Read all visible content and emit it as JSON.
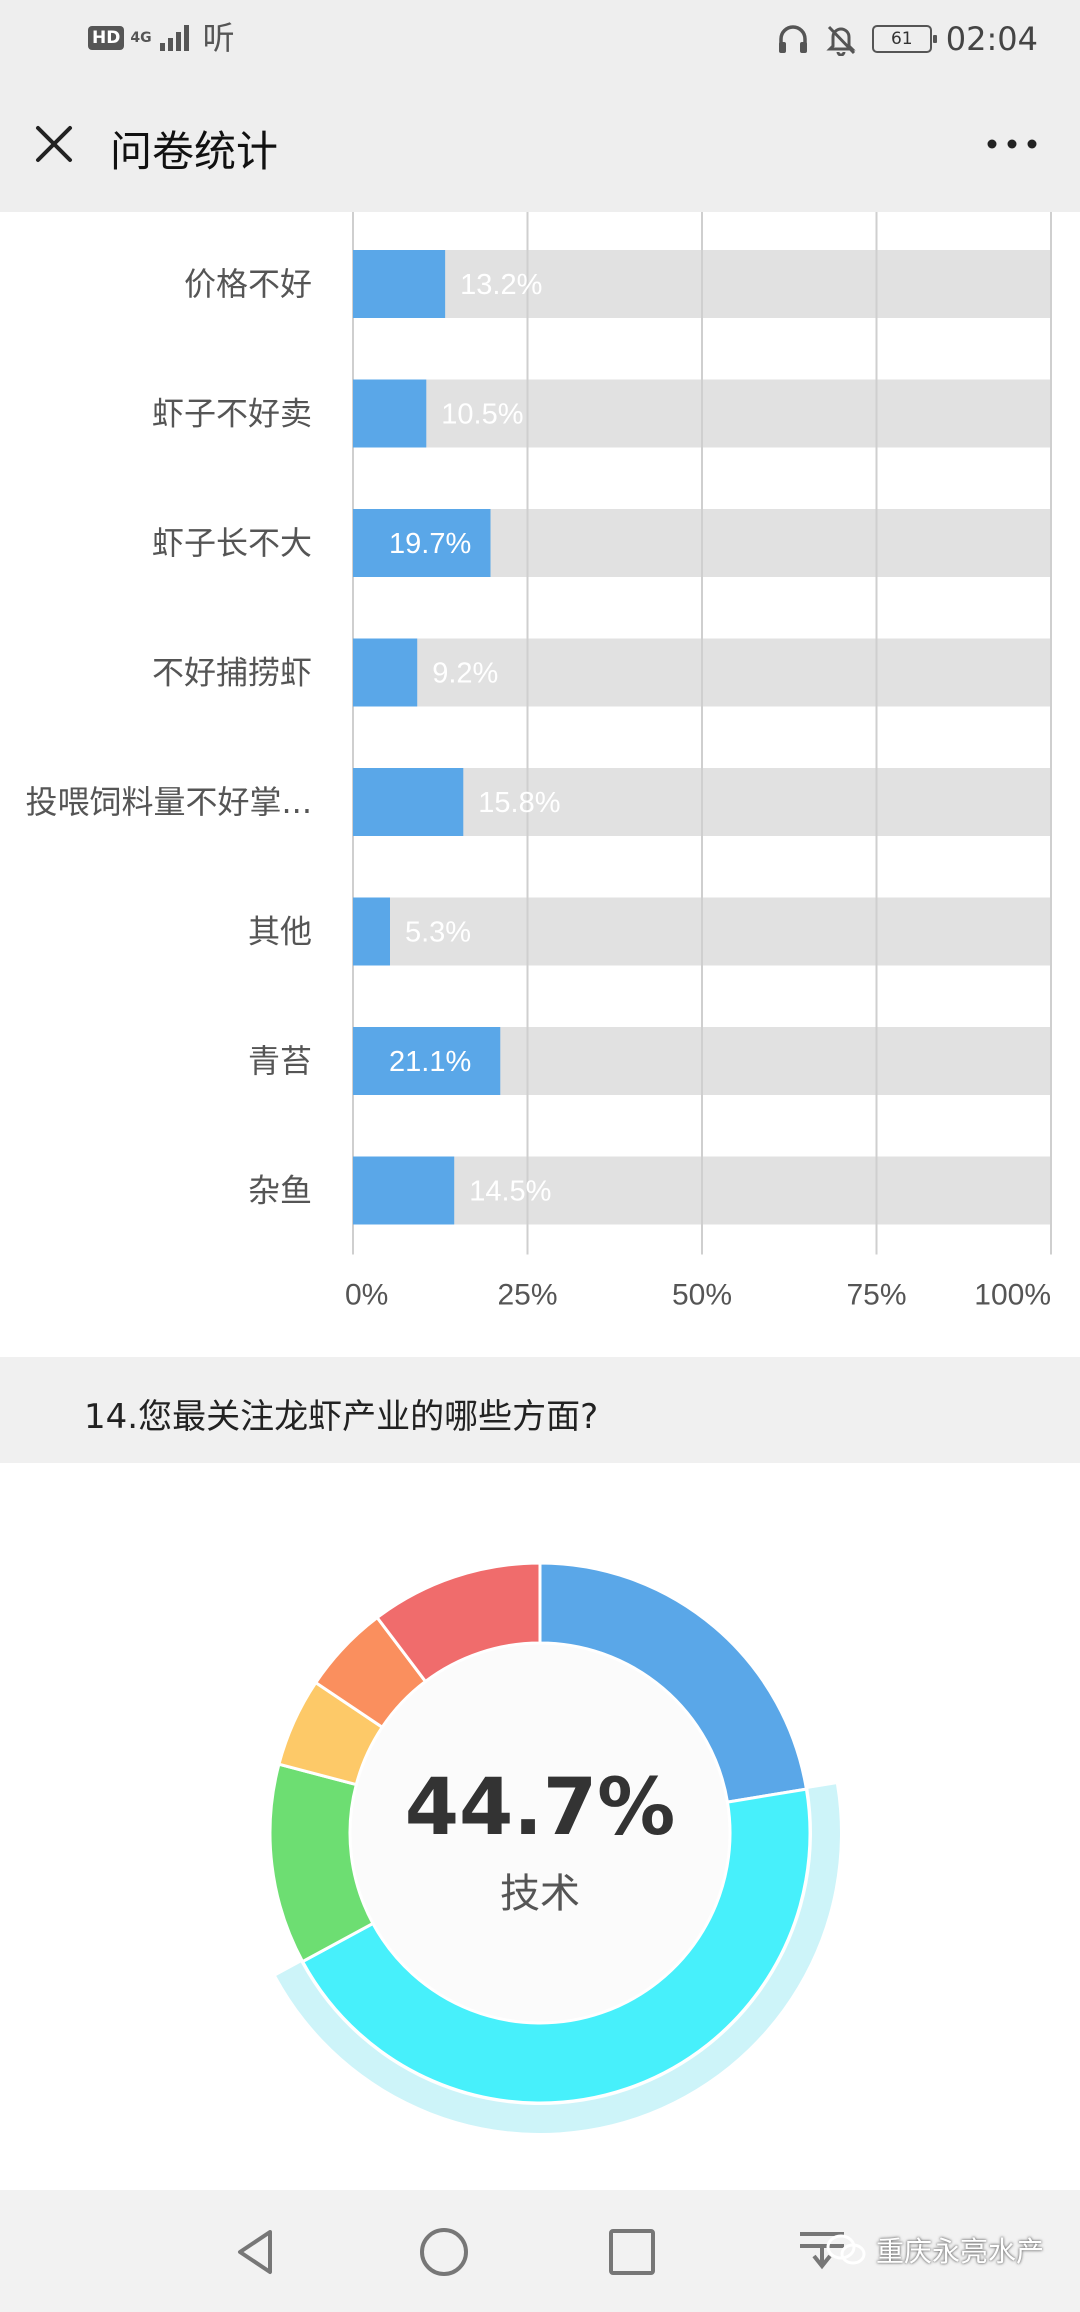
{
  "status_bar": {
    "hd": "HD",
    "network": "4G",
    "app_label": "听",
    "battery": "61",
    "time": "02:04"
  },
  "header": {
    "title": "问卷统计"
  },
  "chart_data": [
    {
      "type": "bar",
      "orientation": "horizontal",
      "categories": [
        "价格不好",
        "虾子不好卖",
        "虾子长不大",
        "不好捕捞虾",
        "投喂饲料量不好掌...",
        "其他",
        "青苔",
        "杂鱼"
      ],
      "values": [
        13.2,
        10.5,
        19.7,
        9.2,
        15.8,
        5.3,
        21.1,
        14.5
      ],
      "labels": [
        "13.2%",
        "10.5%",
        "19.7%",
        "9.2%",
        "15.8%",
        "5.3%",
        "21.1%",
        "14.5%"
      ],
      "x_ticks": [
        "0%",
        "25%",
        "50%",
        "75%",
        "100%"
      ],
      "xlim": [
        0,
        100
      ],
      "grid": true,
      "colors": {
        "bar": "#5aa7e8",
        "track": "#e1e1e1"
      }
    },
    {
      "type": "pie",
      "title": "14.您最关注龙虾产业的哪些方面?",
      "highlight": {
        "value": "44.7%",
        "label": "技术"
      },
      "slices": [
        {
          "value": 22.4,
          "color": "#5aa7e8"
        },
        {
          "value": 44.7,
          "color": "#47f0fb",
          "highlighted": true
        },
        {
          "value": 12.0,
          "color": "#6dde72"
        },
        {
          "value": 5.3,
          "color": "#fdc968"
        },
        {
          "value": 5.3,
          "color": "#fa8f5e"
        },
        {
          "value": 10.3,
          "color": "#f06c6c"
        }
      ]
    }
  ],
  "question": {
    "text": "14.您最关注龙虾产业的哪些方面?"
  },
  "navbar": {
    "watermark": "重庆永亮水产"
  }
}
